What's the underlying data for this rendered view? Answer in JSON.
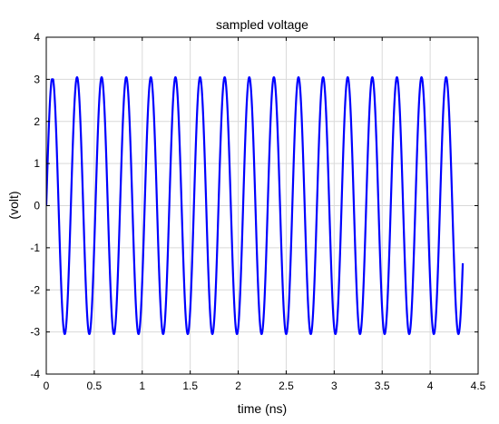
{
  "chart_data": {
    "type": "line",
    "title": "sampled voltage",
    "xlabel": "time (ns)",
    "ylabel": "(volt)",
    "xlim": [
      0,
      4.5
    ],
    "ylim": [
      -4,
      4
    ],
    "xticks": [
      0,
      0.5,
      1,
      1.5,
      2,
      2.5,
      3,
      3.5,
      4,
      4.5
    ],
    "yticks": [
      -4,
      -3,
      -2,
      -1,
      0,
      1,
      2,
      3,
      4
    ],
    "xtick_labels": [
      "0",
      "0.5",
      "1",
      "1.5",
      "2",
      "2.5",
      "3",
      "3.5",
      "4",
      "4.5"
    ],
    "ytick_labels": [
      "-4",
      "-3",
      "-2",
      "-1",
      "0",
      "1",
      "2",
      "3",
      "4"
    ],
    "grid": true,
    "legend": "none",
    "series": [
      {
        "color": "#0000ff",
        "amplitude": 3.05,
        "frequency_ghz": 3.9,
        "x_start": 0,
        "x_end": 4.34,
        "initial_peak": 3.0
      }
    ]
  }
}
